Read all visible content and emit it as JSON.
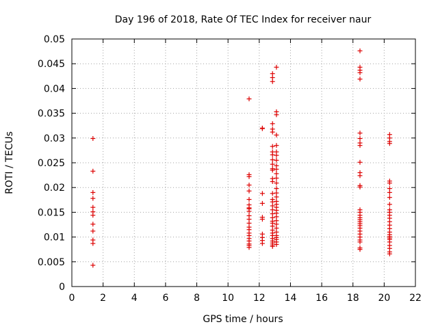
{
  "chart_data": {
    "type": "scatter",
    "title": "Day 196 of 2018, Rate Of TEC Index for receiver naur",
    "xlabel": "GPS time / hours",
    "ylabel": "ROTI / TECUs",
    "xlim": [
      0,
      22
    ],
    "ylim": [
      0,
      0.05
    ],
    "xticks": [
      0,
      2,
      4,
      6,
      8,
      10,
      12,
      14,
      16,
      18,
      20,
      22
    ],
    "xtick_labels": [
      "0",
      "2",
      "4",
      "6",
      "8",
      "10",
      "12",
      "14",
      "16",
      "18",
      "20",
      "22"
    ],
    "yticks": [
      0,
      0.005,
      0.01,
      0.015,
      0.02,
      0.025,
      0.03,
      0.035,
      0.04,
      0.045,
      0.05
    ],
    "ytick_labels": [
      "0",
      "0.005",
      "0.01",
      "0.015",
      "0.02",
      "0.025",
      "0.03",
      "0.035",
      "0.04",
      "0.045",
      "0.05"
    ],
    "grid": true,
    "marker": "+",
    "marker_color": "#dd0000",
    "series": [
      {
        "name": "ROTI",
        "points": [
          [
            1.35,
            0.0299
          ],
          [
            1.35,
            0.0233
          ],
          [
            1.35,
            0.019
          ],
          [
            1.35,
            0.0178
          ],
          [
            1.35,
            0.016
          ],
          [
            1.35,
            0.0151
          ],
          [
            1.35,
            0.0144
          ],
          [
            1.35,
            0.0126
          ],
          [
            1.35,
            0.0112
          ],
          [
            1.35,
            0.0094
          ],
          [
            1.35,
            0.0087
          ],
          [
            1.35,
            0.0043
          ],
          [
            11.35,
            0.0379
          ],
          [
            11.35,
            0.0226
          ],
          [
            11.35,
            0.0222
          ],
          [
            11.35,
            0.0205
          ],
          [
            11.35,
            0.0193
          ],
          [
            11.35,
            0.0176
          ],
          [
            11.35,
            0.0165
          ],
          [
            11.35,
            0.0159
          ],
          [
            11.35,
            0.0157
          ],
          [
            11.35,
            0.0152
          ],
          [
            11.35,
            0.0143
          ],
          [
            11.35,
            0.0136
          ],
          [
            11.35,
            0.0128
          ],
          [
            11.35,
            0.012
          ],
          [
            11.35,
            0.0115
          ],
          [
            11.35,
            0.0108
          ],
          [
            11.35,
            0.0103
          ],
          [
            11.35,
            0.0097
          ],
          [
            11.35,
            0.0092
          ],
          [
            11.35,
            0.0086
          ],
          [
            11.35,
            0.0083
          ],
          [
            11.35,
            0.0079
          ],
          [
            12.2,
            0.032
          ],
          [
            12.2,
            0.0319
          ],
          [
            12.2,
            0.0188
          ],
          [
            12.2,
            0.0168
          ],
          [
            12.2,
            0.014
          ],
          [
            12.2,
            0.0136
          ],
          [
            12.2,
            0.0106
          ],
          [
            12.2,
            0.0099
          ],
          [
            12.2,
            0.0093
          ],
          [
            12.2,
            0.0087
          ],
          [
            12.85,
            0.043
          ],
          [
            12.85,
            0.0422
          ],
          [
            12.85,
            0.0414
          ],
          [
            12.85,
            0.0329
          ],
          [
            12.85,
            0.0318
          ],
          [
            12.85,
            0.0312
          ],
          [
            12.85,
            0.0283
          ],
          [
            12.85,
            0.0272
          ],
          [
            12.85,
            0.0266
          ],
          [
            12.85,
            0.0256
          ],
          [
            12.85,
            0.0247
          ],
          [
            12.85,
            0.0238
          ],
          [
            12.85,
            0.0235
          ],
          [
            12.85,
            0.0218
          ],
          [
            12.85,
            0.0212
          ],
          [
            12.85,
            0.0188
          ],
          [
            12.85,
            0.0176
          ],
          [
            12.85,
            0.0171
          ],
          [
            12.85,
            0.0163
          ],
          [
            12.85,
            0.0155
          ],
          [
            12.85,
            0.0147
          ],
          [
            12.85,
            0.0139
          ],
          [
            12.85,
            0.0132
          ],
          [
            12.85,
            0.0128
          ],
          [
            12.85,
            0.0122
          ],
          [
            12.85,
            0.0114
          ],
          [
            12.85,
            0.0108
          ],
          [
            12.85,
            0.0103
          ],
          [
            12.85,
            0.0097
          ],
          [
            12.85,
            0.0092
          ],
          [
            12.85,
            0.0088
          ],
          [
            12.85,
            0.0084
          ],
          [
            12.85,
            0.0081
          ],
          [
            13.1,
            0.0443
          ],
          [
            13.1,
            0.0353
          ],
          [
            13.1,
            0.0347
          ],
          [
            13.1,
            0.0306
          ],
          [
            13.1,
            0.0285
          ],
          [
            13.1,
            0.0272
          ],
          [
            13.1,
            0.0265
          ],
          [
            13.1,
            0.0255
          ],
          [
            13.1,
            0.0244
          ],
          [
            13.1,
            0.0237
          ],
          [
            13.1,
            0.0228
          ],
          [
            13.1,
            0.0219
          ],
          [
            13.1,
            0.0209
          ],
          [
            13.1,
            0.0198
          ],
          [
            13.1,
            0.0189
          ],
          [
            13.1,
            0.0181
          ],
          [
            13.1,
            0.0172
          ],
          [
            13.1,
            0.0166
          ],
          [
            13.1,
            0.016
          ],
          [
            13.1,
            0.0154
          ],
          [
            13.1,
            0.0148
          ],
          [
            13.1,
            0.0141
          ],
          [
            13.1,
            0.0133
          ],
          [
            13.1,
            0.0126
          ],
          [
            13.1,
            0.0118
          ],
          [
            13.1,
            0.011
          ],
          [
            13.1,
            0.0103
          ],
          [
            13.1,
            0.0099
          ],
          [
            13.1,
            0.0095
          ],
          [
            13.1,
            0.009
          ],
          [
            13.1,
            0.0085
          ],
          [
            18.45,
            0.0476
          ],
          [
            18.45,
            0.0443
          ],
          [
            18.45,
            0.0437
          ],
          [
            18.45,
            0.0432
          ],
          [
            18.45,
            0.0419
          ],
          [
            18.45,
            0.031
          ],
          [
            18.45,
            0.0299
          ],
          [
            18.45,
            0.029
          ],
          [
            18.45,
            0.0285
          ],
          [
            18.45,
            0.0251
          ],
          [
            18.45,
            0.023
          ],
          [
            18.45,
            0.0224
          ],
          [
            18.45,
            0.0204
          ],
          [
            18.45,
            0.0201
          ],
          [
            18.45,
            0.0155
          ],
          [
            18.45,
            0.015
          ],
          [
            18.45,
            0.0144
          ],
          [
            18.45,
            0.0139
          ],
          [
            18.45,
            0.0135
          ],
          [
            18.45,
            0.0131
          ],
          [
            18.45,
            0.0127
          ],
          [
            18.45,
            0.0123
          ],
          [
            18.45,
            0.0118
          ],
          [
            18.45,
            0.0112
          ],
          [
            18.45,
            0.0106
          ],
          [
            18.45,
            0.01
          ],
          [
            18.45,
            0.0094
          ],
          [
            18.45,
            0.009
          ],
          [
            18.45,
            0.0078
          ],
          [
            18.45,
            0.0075
          ],
          [
            20.35,
            0.0307
          ],
          [
            20.35,
            0.03
          ],
          [
            20.35,
            0.0293
          ],
          [
            20.35,
            0.0289
          ],
          [
            20.35,
            0.0213
          ],
          [
            20.35,
            0.0209
          ],
          [
            20.35,
            0.0198
          ],
          [
            20.35,
            0.019
          ],
          [
            20.35,
            0.018
          ],
          [
            20.35,
            0.0166
          ],
          [
            20.35,
            0.0155
          ],
          [
            20.35,
            0.015
          ],
          [
            20.35,
            0.0144
          ],
          [
            20.35,
            0.0138
          ],
          [
            20.35,
            0.0131
          ],
          [
            20.35,
            0.0124
          ],
          [
            20.35,
            0.0117
          ],
          [
            20.35,
            0.011
          ],
          [
            20.35,
            0.0105
          ],
          [
            20.35,
            0.0101
          ],
          [
            20.35,
            0.0098
          ],
          [
            20.35,
            0.0095
          ],
          [
            20.35,
            0.009
          ],
          [
            20.35,
            0.0083
          ],
          [
            20.35,
            0.0077
          ],
          [
            20.35,
            0.007
          ],
          [
            20.35,
            0.0066
          ]
        ]
      }
    ]
  }
}
